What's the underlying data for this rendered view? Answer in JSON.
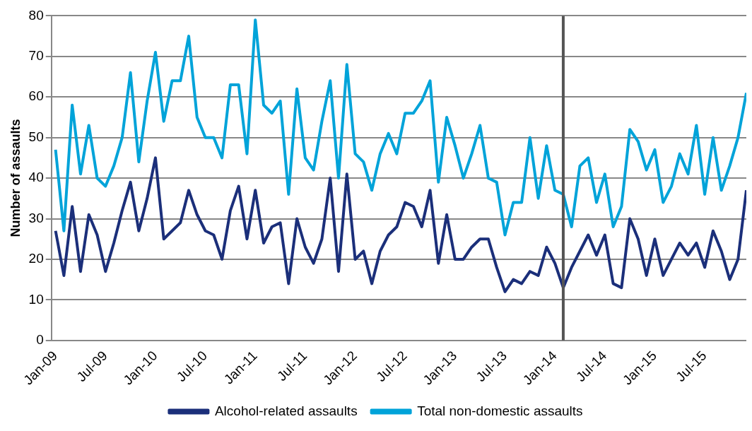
{
  "chart_data": {
    "type": "line",
    "ylabel": "Number of assaults",
    "x": [
      "2009-01",
      "2009-02",
      "2009-03",
      "2009-04",
      "2009-05",
      "2009-06",
      "2009-07",
      "2009-08",
      "2009-09",
      "2009-10",
      "2009-11",
      "2009-12",
      "2010-01",
      "2010-02",
      "2010-03",
      "2010-04",
      "2010-05",
      "2010-06",
      "2010-07",
      "2010-08",
      "2010-09",
      "2010-10",
      "2010-11",
      "2010-12",
      "2011-01",
      "2011-02",
      "2011-03",
      "2011-04",
      "2011-05",
      "2011-06",
      "2011-07",
      "2011-08",
      "2011-09",
      "2011-10",
      "2011-11",
      "2011-12",
      "2012-01",
      "2012-02",
      "2012-03",
      "2012-04",
      "2012-05",
      "2012-06",
      "2012-07",
      "2012-08",
      "2012-09",
      "2012-10",
      "2012-11",
      "2012-12",
      "2013-01",
      "2013-02",
      "2013-03",
      "2013-04",
      "2013-05",
      "2013-06",
      "2013-07",
      "2013-08",
      "2013-09",
      "2013-10",
      "2013-11",
      "2013-12",
      "2014-01",
      "2014-02",
      "2014-03",
      "2014-04",
      "2014-05",
      "2014-06",
      "2014-07",
      "2014-08",
      "2014-09",
      "2014-10",
      "2014-11",
      "2014-12",
      "2015-01",
      "2015-02",
      "2015-03",
      "2015-04",
      "2015-05",
      "2015-06",
      "2015-07",
      "2015-08",
      "2015-09",
      "2015-10",
      "2015-11",
      "2015-12"
    ],
    "series": [
      {
        "name": "Alcohol-related assaults",
        "color": "#1b2f7a",
        "values": [
          27,
          16,
          33,
          17,
          31,
          26,
          17,
          24,
          32,
          39,
          27,
          35,
          45,
          25,
          27,
          29,
          37,
          31,
          27,
          26,
          20,
          32,
          38,
          25,
          37,
          24,
          28,
          29,
          14,
          30,
          23,
          19,
          25,
          40,
          17,
          41,
          20,
          22,
          14,
          22,
          26,
          28,
          34,
          33,
          28,
          37,
          19,
          31,
          20,
          20,
          23,
          25,
          25,
          18,
          12,
          15,
          14,
          17,
          16,
          23,
          19,
          13,
          18,
          22,
          26,
          21,
          26,
          14,
          13,
          30,
          25,
          16,
          25,
          16,
          20,
          24,
          21,
          24,
          18,
          27,
          22,
          15,
          20,
          37
        ]
      },
      {
        "name": "Total non-domestic assaults",
        "color": "#00a3d9",
        "values": [
          47,
          27,
          58,
          41,
          53,
          40,
          38,
          43,
          50,
          66,
          44,
          59,
          71,
          54,
          64,
          64,
          75,
          55,
          50,
          50,
          45,
          63,
          63,
          46,
          79,
          58,
          56,
          59,
          36,
          62,
          45,
          42,
          54,
          64,
          40,
          68,
          46,
          44,
          37,
          46,
          51,
          46,
          56,
          56,
          59,
          64,
          39,
          55,
          48,
          40,
          46,
          53,
          40,
          39,
          26,
          34,
          34,
          50,
          35,
          48,
          37,
          36,
          28,
          43,
          45,
          34,
          41,
          28,
          33,
          52,
          49,
          42,
          47,
          34,
          38,
          46,
          41,
          53,
          36,
          50,
          37,
          43,
          50,
          61
        ]
      }
    ],
    "xlim": [
      "2008-12-16",
      "2015-12"
    ],
    "xticks": [
      {
        "value": "2009-01",
        "label": "Jan-09"
      },
      {
        "value": "2009-07",
        "label": "Jul-09"
      },
      {
        "value": "2010-01",
        "label": "Jan-10"
      },
      {
        "value": "2010-07",
        "label": "Jul-10"
      },
      {
        "value": "2011-01",
        "label": "Jan-11"
      },
      {
        "value": "2011-07",
        "label": "Jul-11"
      },
      {
        "value": "2012-01",
        "label": "Jan-12"
      },
      {
        "value": "2012-07",
        "label": "Jul-12"
      },
      {
        "value": "2013-01",
        "label": "Jan-13"
      },
      {
        "value": "2013-07",
        "label": "Jul-13"
      },
      {
        "value": "2014-01",
        "label": "Jan-14"
      },
      {
        "value": "2014-07",
        "label": "Jul-14"
      },
      {
        "value": "2015-01",
        "label": "Jan-15"
      },
      {
        "value": "2015-07",
        "label": "Jul-15"
      }
    ],
    "ylim": [
      0,
      80
    ],
    "yticks": [
      0,
      10,
      20,
      30,
      40,
      50,
      60,
      70,
      80
    ],
    "grid": "y",
    "legend": "bottom",
    "marker": "none",
    "line_style": "solid",
    "ref_lines": [
      {
        "axis": "x",
        "value": "2014-02",
        "color": "#555555"
      }
    ]
  }
}
